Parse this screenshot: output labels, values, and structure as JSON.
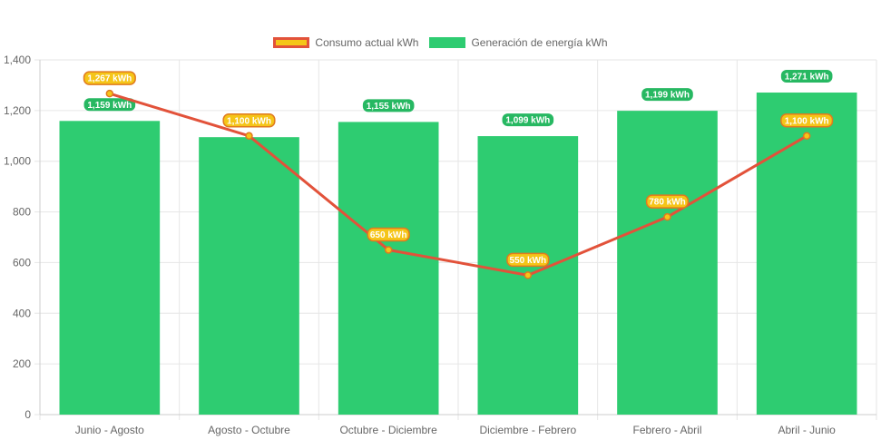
{
  "chart_data": {
    "type": "bar",
    "categories": [
      "Junio - Agosto",
      "Agosto - Octubre",
      "Octubre - Diciembre",
      "Diciembre - Febrero",
      "Febrero - Abril",
      "Abril - Junio"
    ],
    "series": [
      {
        "name": "Consumo actual kWh",
        "type": "line",
        "values": [
          1267,
          1100,
          650,
          550,
          780,
          1100
        ],
        "labels": [
          "1,267 kWh",
          "1,100 kWh",
          "650 kWh",
          "550 kWh",
          "780 kWh",
          "1,100 kWh"
        ],
        "color": "#e2523a",
        "label_fill": "#f5c518",
        "label_border": "#e07a1f"
      },
      {
        "name": "Generación de energía kWh",
        "type": "bar",
        "values": [
          1159,
          1095,
          1155,
          1099,
          1199,
          1271
        ],
        "labels": [
          "1,159 kWh",
          "",
          "1,155 kWh",
          "1,099 kWh",
          "1,199 kWh",
          "1,271 kWh"
        ],
        "color": "#2ecc71"
      }
    ],
    "ylim": [
      0,
      1400
    ],
    "yticks": [
      0,
      200,
      400,
      600,
      800,
      1000,
      1200,
      1400
    ],
    "ytick_labels": [
      "0",
      "200",
      "400",
      "600",
      "800",
      "1,000",
      "1,200",
      "1,400"
    ],
    "grid": true,
    "legend_position": "top"
  }
}
